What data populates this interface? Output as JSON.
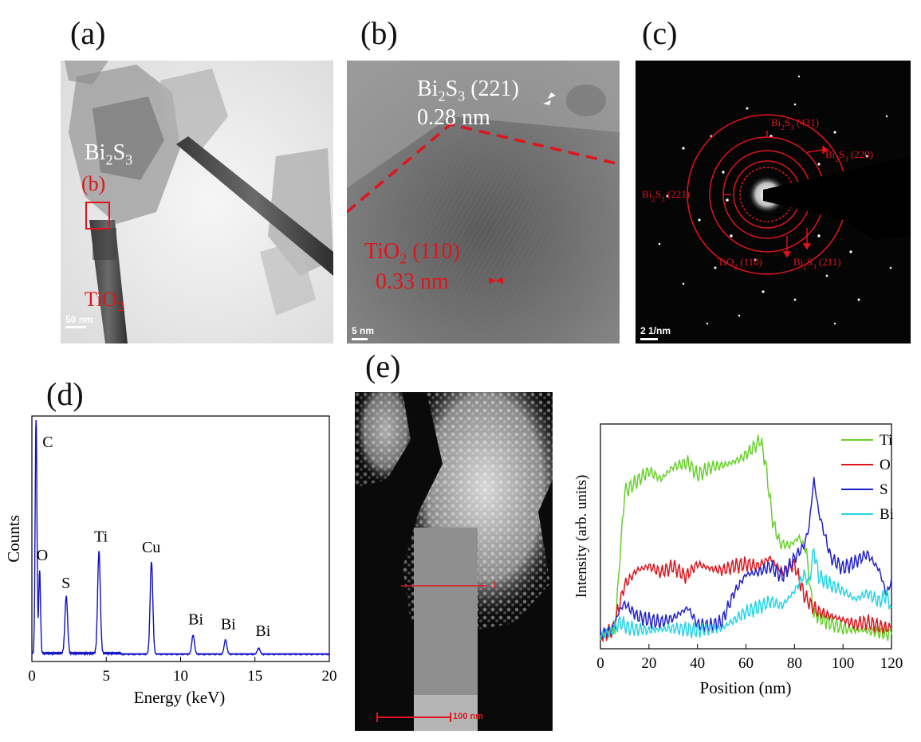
{
  "figure": {
    "panel_labels": {
      "a": "(a)",
      "b": "(b)",
      "c": "(c)",
      "d": "(d)",
      "e": "(e)"
    }
  },
  "panel_a": {
    "material_label": "Bi2S3",
    "box_label": "(b)",
    "rod_label": "TiO2",
    "scale_bar": "50 nm"
  },
  "panel_b": {
    "bi2s3_plane": "Bi2S3 (221)",
    "bi2s3_spacing": "0.28 nm",
    "tio2_plane": "TiO2 (110)",
    "tio2_spacing": "0.33 nm",
    "scale_bar": "5 nm"
  },
  "panel_c": {
    "rings": [
      {
        "label": "Bi2S3 (431)"
      },
      {
        "label": "Bi2S3 (220)"
      },
      {
        "label": "Bi2S3 (221)"
      },
      {
        "label": "TiO2 (110)"
      },
      {
        "label": "Bi2S3 (211)"
      }
    ],
    "scale_bar": "2 1/nm"
  },
  "panel_e_image": {
    "scale_bar": "100 nm",
    "marker": "1"
  },
  "chart_data": [
    {
      "type": "line",
      "title": "",
      "xlabel": "Energy (keV)",
      "ylabel": "Counts",
      "xlim": [
        0,
        20
      ],
      "xticks": [
        0,
        5,
        10,
        15,
        20
      ],
      "peaks": [
        {
          "element": "C",
          "energy": 0.28,
          "height": 1.0
        },
        {
          "element": "O",
          "energy": 0.52,
          "height": 0.35
        },
        {
          "element": "S",
          "energy": 2.31,
          "height": 0.24
        },
        {
          "element": "Ti",
          "energy": 4.51,
          "height": 0.43
        },
        {
          "element": "Cu",
          "energy": 8.04,
          "height": 0.39
        },
        {
          "element": "Bi",
          "energy": 10.84,
          "height": 0.08
        },
        {
          "element": "Bi",
          "energy": 13.02,
          "height": 0.06
        },
        {
          "element": "Bi",
          "energy": 15.25,
          "height": 0.025
        }
      ]
    },
    {
      "type": "line",
      "title": "",
      "xlabel": "Position (nm)",
      "ylabel": "Intensity (arb. units)",
      "xlim": [
        0,
        120
      ],
      "xticks": [
        0,
        20,
        40,
        60,
        80,
        100,
        120
      ],
      "series": [
        {
          "name": "Ti",
          "color": "#66d22a",
          "points": [
            [
              0,
              0.02
            ],
            [
              3,
              0.03
            ],
            [
              6,
              0.05
            ],
            [
              8,
              0.4
            ],
            [
              10,
              0.72
            ],
            [
              14,
              0.76
            ],
            [
              20,
              0.82
            ],
            [
              25,
              0.78
            ],
            [
              30,
              0.84
            ],
            [
              36,
              0.86
            ],
            [
              40,
              0.8
            ],
            [
              46,
              0.84
            ],
            [
              52,
              0.85
            ],
            [
              58,
              0.88
            ],
            [
              62,
              0.92
            ],
            [
              66,
              0.97
            ],
            [
              68,
              0.86
            ],
            [
              71,
              0.58
            ],
            [
              74,
              0.47
            ],
            [
              78,
              0.46
            ],
            [
              82,
              0.5
            ],
            [
              85,
              0.43
            ],
            [
              86,
              0.3
            ],
            [
              88,
              0.13
            ],
            [
              92,
              0.1
            ],
            [
              100,
              0.06
            ],
            [
              108,
              0.05
            ],
            [
              115,
              0.04
            ],
            [
              120,
              0.03
            ]
          ]
        },
        {
          "name": "O",
          "color": "#e0141c",
          "points": [
            [
              0,
              0.02
            ],
            [
              5,
              0.05
            ],
            [
              7,
              0.14
            ],
            [
              10,
              0.27
            ],
            [
              15,
              0.34
            ],
            [
              20,
              0.36
            ],
            [
              25,
              0.33
            ],
            [
              30,
              0.36
            ],
            [
              35,
              0.31
            ],
            [
              40,
              0.37
            ],
            [
              45,
              0.35
            ],
            [
              50,
              0.34
            ],
            [
              55,
              0.36
            ],
            [
              60,
              0.37
            ],
            [
              65,
              0.36
            ],
            [
              70,
              0.4
            ],
            [
              75,
              0.33
            ],
            [
              80,
              0.37
            ],
            [
              84,
              0.22
            ],
            [
              87,
              0.17
            ],
            [
              90,
              0.14
            ],
            [
              95,
              0.12
            ],
            [
              100,
              0.1
            ],
            [
              105,
              0.08
            ],
            [
              110,
              0.09
            ],
            [
              115,
              0.07
            ],
            [
              120,
              0.06
            ]
          ]
        },
        {
          "name": "S",
          "color": "#2222cc",
          "points": [
            [
              0,
              0.03
            ],
            [
              5,
              0.06
            ],
            [
              8,
              0.15
            ],
            [
              10,
              0.18
            ],
            [
              15,
              0.12
            ],
            [
              20,
              0.1
            ],
            [
              25,
              0.09
            ],
            [
              30,
              0.11
            ],
            [
              36,
              0.16
            ],
            [
              40,
              0.08
            ],
            [
              45,
              0.07
            ],
            [
              50,
              0.09
            ],
            [
              55,
              0.23
            ],
            [
              60,
              0.32
            ],
            [
              65,
              0.33
            ],
            [
              70,
              0.36
            ],
            [
              75,
              0.31
            ],
            [
              80,
              0.4
            ],
            [
              84,
              0.46
            ],
            [
              86,
              0.55
            ],
            [
              88,
              0.78
            ],
            [
              90,
              0.62
            ],
            [
              95,
              0.4
            ],
            [
              100,
              0.35
            ],
            [
              105,
              0.38
            ],
            [
              110,
              0.42
            ],
            [
              115,
              0.34
            ],
            [
              118,
              0.22
            ],
            [
              120,
              0.3
            ]
          ]
        },
        {
          "name": "Bi",
          "color": "#22d6e6",
          "points": [
            [
              0,
              0.02
            ],
            [
              5,
              0.05
            ],
            [
              8,
              0.09
            ],
            [
              12,
              0.06
            ],
            [
              20,
              0.05
            ],
            [
              30,
              0.06
            ],
            [
              40,
              0.05
            ],
            [
              50,
              0.06
            ],
            [
              55,
              0.1
            ],
            [
              60,
              0.14
            ],
            [
              65,
              0.16
            ],
            [
              70,
              0.19
            ],
            [
              75,
              0.17
            ],
            [
              80,
              0.24
            ],
            [
              84,
              0.32
            ],
            [
              86,
              0.28
            ],
            [
              88,
              0.44
            ],
            [
              90,
              0.31
            ],
            [
              95,
              0.27
            ],
            [
              100,
              0.24
            ],
            [
              105,
              0.2
            ],
            [
              110,
              0.23
            ],
            [
              115,
              0.19
            ],
            [
              118,
              0.22
            ],
            [
              120,
              0.16
            ]
          ]
        }
      ]
    }
  ]
}
